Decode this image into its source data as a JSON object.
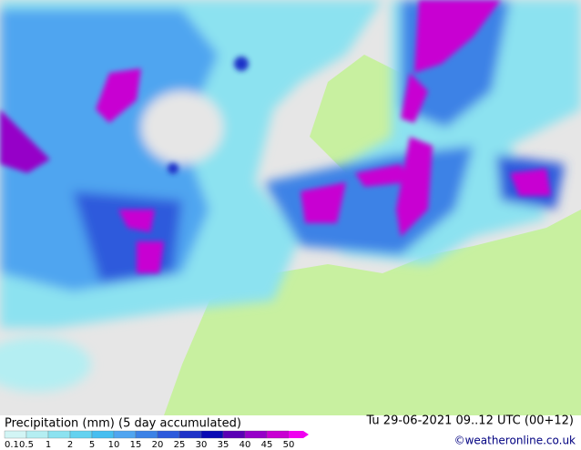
{
  "title": "Precipitation (mm) (5 day accumulated)",
  "valid_time": "Tu 29-06-2021 09..12 UTC (00+12)",
  "credit": "©weatheronline.co.uk",
  "legend": {
    "labels": [
      "0.1",
      "0.5",
      "1",
      "2",
      "5",
      "10",
      "15",
      "20",
      "25",
      "30",
      "35",
      "40",
      "45",
      "50"
    ],
    "colors": [
      "#d2f5f5",
      "#b4eef2",
      "#8ce2f0",
      "#64d2f0",
      "#46bef0",
      "#50a5f0",
      "#3c82e6",
      "#2d5adc",
      "#1e32c8",
      "#0a0ab4",
      "#5a00b4",
      "#9600c8",
      "#c800d2",
      "#f000f0"
    ]
  }
}
